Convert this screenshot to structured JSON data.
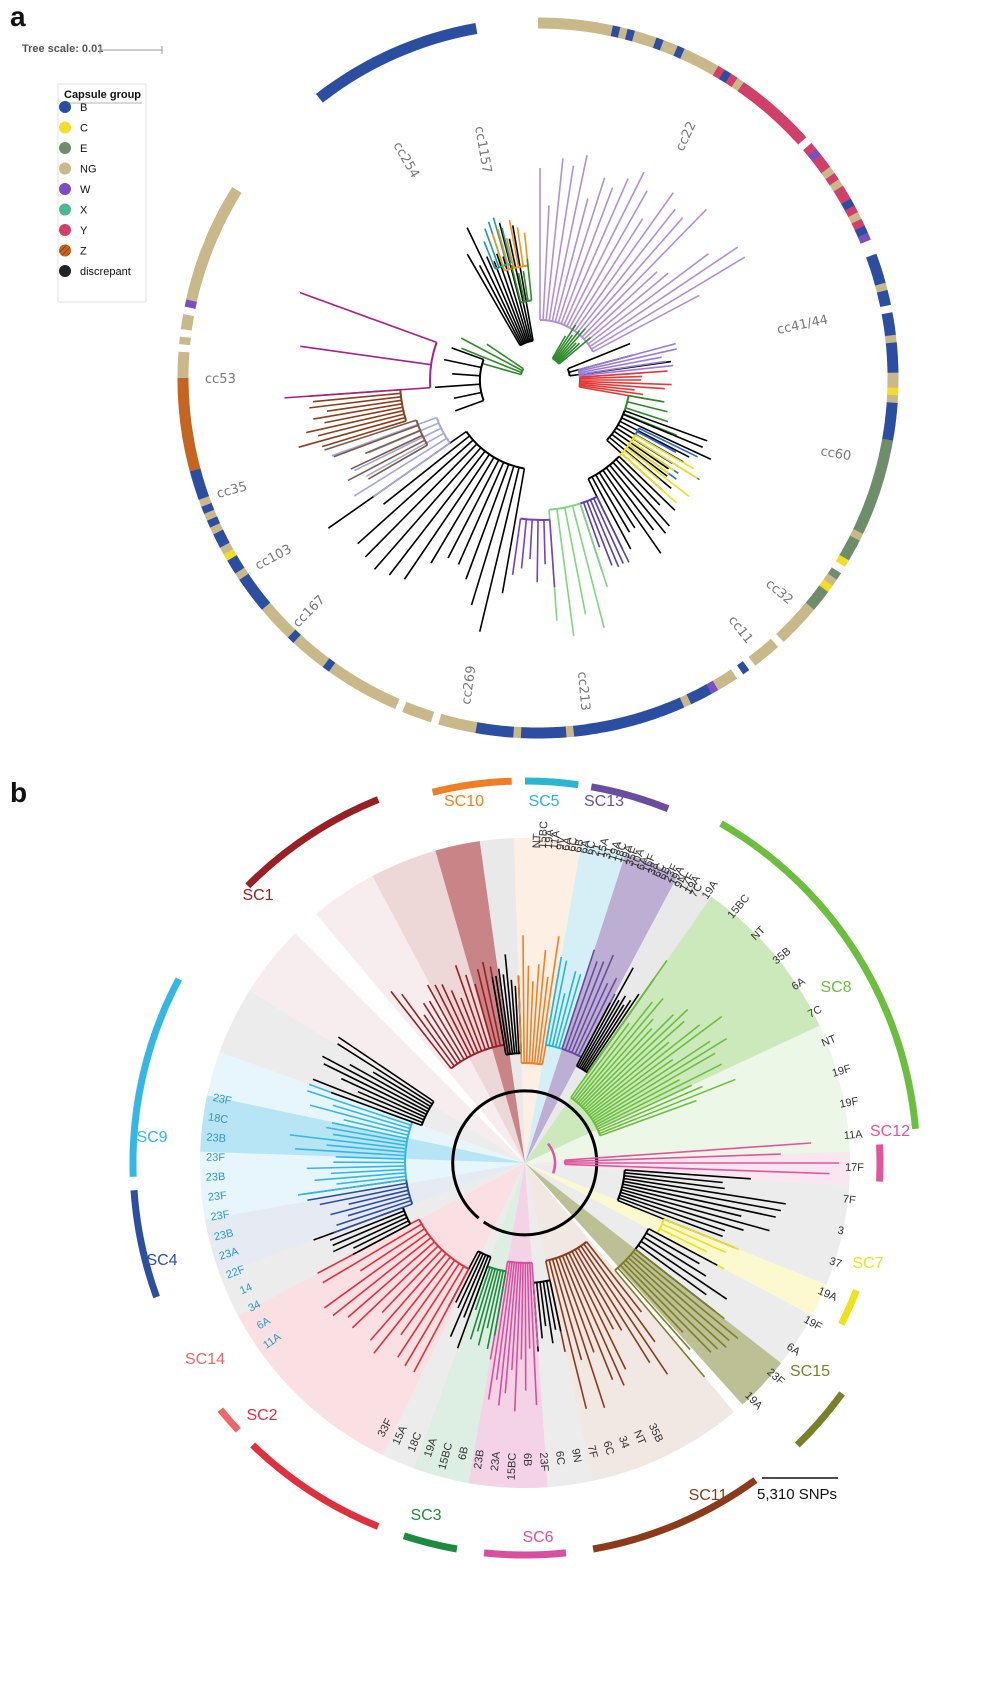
{
  "panel_a": {
    "letter": "a",
    "tree_scale": "Tree scale: 0.01",
    "legend": {
      "title": "Capsule group",
      "items": [
        {
          "label": "B",
          "color": "#2c4ea0"
        },
        {
          "label": "C",
          "color": "#f2dd29"
        },
        {
          "label": "E",
          "color": "#6e8e6b"
        },
        {
          "label": "NG",
          "color": "#c9b98a"
        },
        {
          "label": "W",
          "color": "#7a4fbf"
        },
        {
          "label": "X",
          "color": "#4bb893"
        },
        {
          "label": "Y",
          "color": "#d23f6a"
        },
        {
          "label": "Z",
          "color": "#c5651f"
        },
        {
          "label": "discrepant",
          "color": "#222222"
        }
      ]
    },
    "clonal_complexes": [
      "cc1157",
      "cc22",
      "cc254",
      "cc41/44",
      "cc53",
      "cc60",
      "cc35",
      "cc103",
      "cc32",
      "cc167",
      "cc11",
      "cc269",
      "cc213"
    ]
  },
  "panel_b": {
    "letter": "b",
    "scale_bar": "5,310 SNPs",
    "clusters": [
      {
        "label": "SC10",
        "color": "#f07f24"
      },
      {
        "label": "SC5",
        "color": "#2ab5d0"
      },
      {
        "label": "SC13",
        "color": "#6a4d9e"
      },
      {
        "label": "SC1",
        "color": "#9a1f24"
      },
      {
        "label": "SC8",
        "color": "#6cbf3e"
      },
      {
        "label": "SC9",
        "color": "#35b7e5"
      },
      {
        "label": "SC12",
        "color": "#e0559b"
      },
      {
        "label": "SC4",
        "color": "#2e4fa0"
      },
      {
        "label": "SC7",
        "color": "#efe21a"
      },
      {
        "label": "SC14",
        "color": "#f06666"
      },
      {
        "label": "SC15",
        "color": "#7c7f2a"
      },
      {
        "label": "SC2",
        "color": "#e0303e"
      },
      {
        "label": "SC3",
        "color": "#1e8a3e"
      },
      {
        "label": "SC6",
        "color": "#d94fa0"
      },
      {
        "label": "SC11",
        "color": "#8b3b1c"
      }
    ],
    "serotypes_top": [
      "NT",
      "15BC",
      "19A",
      "11A",
      "9V",
      "6A",
      "6C",
      "6B",
      "6A",
      "6C",
      "21",
      "15A",
      "31",
      "19A",
      "18C",
      "19A",
      "35F",
      "10A",
      "6A",
      "16F",
      "38",
      "6C",
      "6B",
      "23F",
      "19A",
      "9N",
      "17F",
      "19A",
      "7C"
    ],
    "serotypes_left": [
      "23F",
      "18C",
      "23B",
      "23F",
      "23B",
      "23F",
      "23F",
      "23B",
      "23A",
      "22F",
      "14",
      "34",
      "6A",
      "11A"
    ],
    "serotypes_right": [
      "19A",
      "15BC",
      "NT",
      "35B",
      "6A",
      "7C",
      "NT",
      "19F",
      "19F",
      "11A",
      "17F",
      "7F",
      "3",
      "37",
      "19A",
      "19F",
      "6A",
      "23F",
      "19A"
    ],
    "serotypes_bottom": [
      "33F",
      "15A",
      "18C",
      "19A",
      "15BC",
      "6B",
      "23B",
      "23A",
      "15BC",
      "6B",
      "23F",
      "6C",
      "9N",
      "7F",
      "6C",
      "34",
      "NT",
      "35B"
    ]
  }
}
